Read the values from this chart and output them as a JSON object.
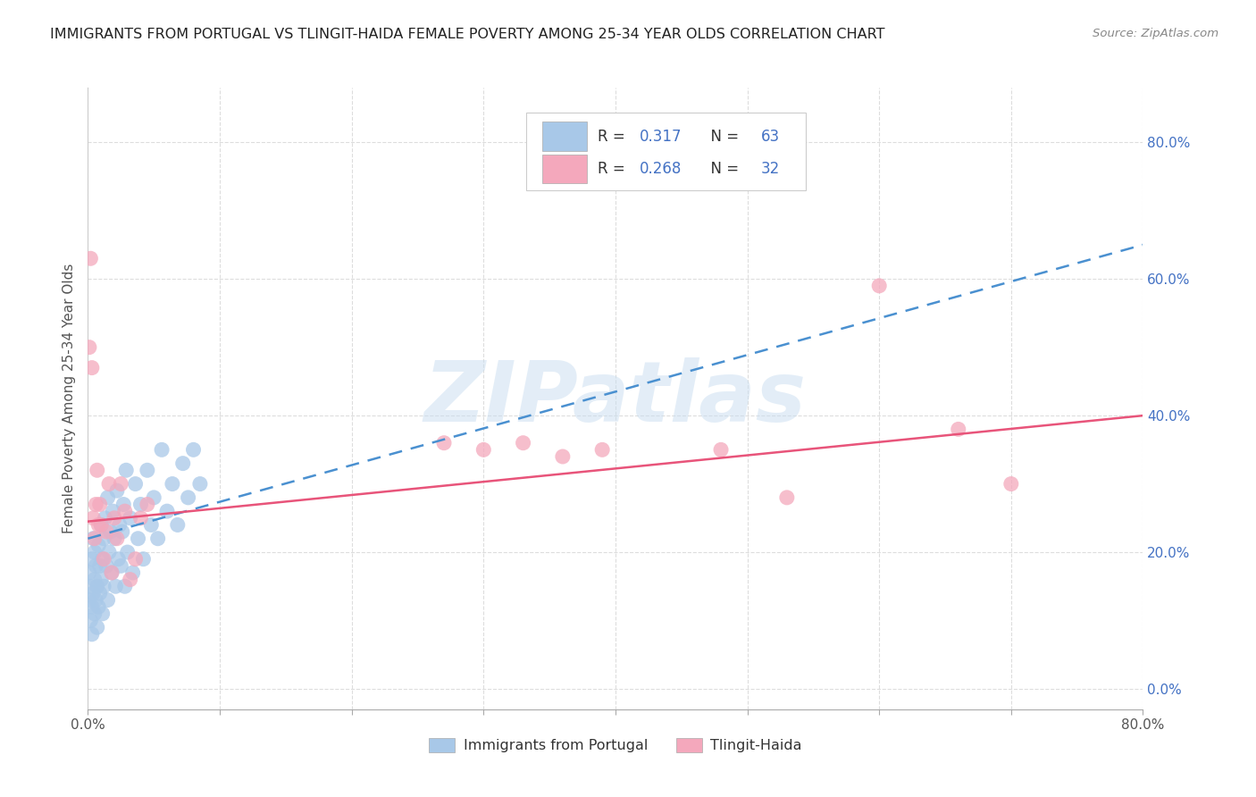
{
  "title": "IMMIGRANTS FROM PORTUGAL VS TLINGIT-HAIDA FEMALE POVERTY AMONG 25-34 YEAR OLDS CORRELATION CHART",
  "source": "Source: ZipAtlas.com",
  "ylabel": "Female Poverty Among 25-34 Year Olds",
  "xlim": [
    0.0,
    0.8
  ],
  "ylim": [
    -0.03,
    0.88
  ],
  "yticks": [
    0.0,
    0.2,
    0.4,
    0.6,
    0.8
  ],
  "ytick_labels": [
    "0.0%",
    "20.0%",
    "40.0%",
    "60.0%",
    "80.0%"
  ],
  "xticks": [
    0.0,
    0.1,
    0.2,
    0.3,
    0.4,
    0.5,
    0.6,
    0.7,
    0.8
  ],
  "xtick_labels": [
    "0.0%",
    "",
    "",
    "",
    "",
    "",
    "",
    "",
    "80.0%"
  ],
  "series1_label": "Immigrants from Portugal",
  "series2_label": "Tlingit-Haida",
  "series1_color": "#a8c8e8",
  "series2_color": "#f4a8bc",
  "line1_color": "#4a90d0",
  "line2_color": "#e8547a",
  "watermark": "ZIPatlas",
  "watermark_color": "#c8ddf0",
  "background_color": "#ffffff",
  "r1": 0.317,
  "n1": 63,
  "r2": 0.268,
  "n2": 32,
  "title_color": "#222222",
  "axis_color": "#4472c4",
  "tick_color": "#555555",
  "label_color": "#555555",
  "series1_x": [
    0.001,
    0.001,
    0.002,
    0.002,
    0.003,
    0.003,
    0.003,
    0.004,
    0.004,
    0.005,
    0.005,
    0.005,
    0.006,
    0.006,
    0.007,
    0.007,
    0.008,
    0.008,
    0.009,
    0.009,
    0.01,
    0.01,
    0.011,
    0.011,
    0.012,
    0.012,
    0.013,
    0.014,
    0.015,
    0.015,
    0.016,
    0.017,
    0.018,
    0.019,
    0.02,
    0.021,
    0.022,
    0.023,
    0.024,
    0.025,
    0.026,
    0.027,
    0.028,
    0.029,
    0.03,
    0.032,
    0.034,
    0.036,
    0.038,
    0.04,
    0.042,
    0.045,
    0.048,
    0.05,
    0.053,
    0.056,
    0.06,
    0.064,
    0.068,
    0.072,
    0.076,
    0.08,
    0.085
  ],
  "series1_y": [
    0.13,
    0.17,
    0.1,
    0.15,
    0.08,
    0.12,
    0.19,
    0.14,
    0.22,
    0.11,
    0.16,
    0.2,
    0.13,
    0.18,
    0.09,
    0.15,
    0.12,
    0.21,
    0.14,
    0.18,
    0.16,
    0.24,
    0.11,
    0.19,
    0.22,
    0.15,
    0.25,
    0.18,
    0.13,
    0.28,
    0.2,
    0.23,
    0.17,
    0.26,
    0.22,
    0.15,
    0.29,
    0.19,
    0.24,
    0.18,
    0.23,
    0.27,
    0.15,
    0.32,
    0.2,
    0.25,
    0.17,
    0.3,
    0.22,
    0.27,
    0.19,
    0.32,
    0.24,
    0.28,
    0.22,
    0.35,
    0.26,
    0.3,
    0.24,
    0.33,
    0.28,
    0.35,
    0.3
  ],
  "series2_x": [
    0.001,
    0.002,
    0.003,
    0.004,
    0.005,
    0.006,
    0.007,
    0.008,
    0.009,
    0.01,
    0.012,
    0.014,
    0.016,
    0.018,
    0.02,
    0.022,
    0.025,
    0.028,
    0.032,
    0.036,
    0.04,
    0.045,
    0.27,
    0.3,
    0.33,
    0.36,
    0.39,
    0.48,
    0.53,
    0.6,
    0.66,
    0.7
  ],
  "series2_y": [
    0.5,
    0.63,
    0.47,
    0.25,
    0.22,
    0.27,
    0.32,
    0.24,
    0.27,
    0.24,
    0.19,
    0.23,
    0.3,
    0.17,
    0.25,
    0.22,
    0.3,
    0.26,
    0.16,
    0.19,
    0.25,
    0.27,
    0.36,
    0.35,
    0.36,
    0.34,
    0.35,
    0.35,
    0.28,
    0.59,
    0.38,
    0.3
  ],
  "line1_y0": 0.22,
  "line1_y1": 0.65,
  "line2_y0": 0.245,
  "line2_y1": 0.4
}
